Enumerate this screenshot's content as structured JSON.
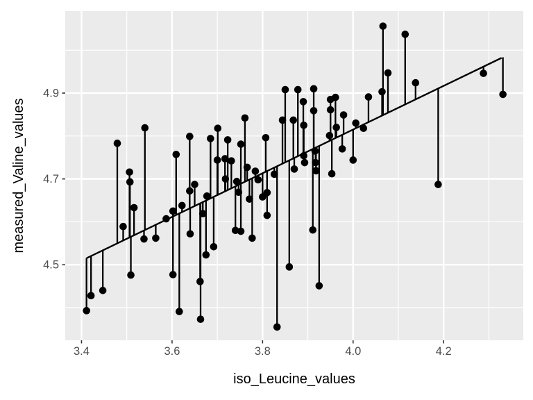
{
  "chart_data": {
    "type": "scatter",
    "title": "",
    "xlabel": "iso_Leucine_values",
    "ylabel": "measured_Valine_values",
    "xlim": [
      3.364,
      4.376
    ],
    "ylim": [
      4.324,
      5.091
    ],
    "x_major_ticks": [
      3.4,
      3.6,
      3.8,
      4.0,
      4.2
    ],
    "x_minor_ticks": [
      3.5,
      3.7,
      3.9,
      4.1,
      4.3
    ],
    "y_major_ticks": [
      4.5,
      4.7,
      4.9
    ],
    "y_minor_ticks": [
      4.4,
      4.6,
      4.8,
      5.0
    ],
    "x_tick_labels": [
      "3.4",
      "3.6",
      "3.8",
      "4.0",
      "4.2"
    ],
    "y_tick_labels": [
      "4.5",
      "4.7",
      "4.9"
    ],
    "grid": "major+minor",
    "legend": "none",
    "regression_line": {
      "slope": 0.509,
      "intercept": 2.779,
      "x_start": 3.411,
      "x_end": 4.328
    },
    "residual_segments": true,
    "points": [
      [
        3.411,
        4.393
      ],
      [
        3.421,
        4.428
      ],
      [
        3.447,
        4.44
      ],
      [
        3.479,
        4.783
      ],
      [
        3.492,
        4.589
      ],
      [
        3.506,
        4.716
      ],
      [
        3.507,
        4.693
      ],
      [
        3.509,
        4.476
      ],
      [
        3.516,
        4.633
      ],
      [
        3.54,
        4.819
      ],
      [
        3.538,
        4.56
      ],
      [
        3.564,
        4.562
      ],
      [
        3.587,
        4.607
      ],
      [
        3.602,
        4.625
      ],
      [
        3.602,
        4.477
      ],
      [
        3.609,
        4.757
      ],
      [
        3.616,
        4.391
      ],
      [
        3.622,
        4.638
      ],
      [
        3.639,
        4.799
      ],
      [
        3.639,
        4.672
      ],
      [
        3.64,
        4.572
      ],
      [
        3.65,
        4.687
      ],
      [
        3.662,
        4.461
      ],
      [
        3.663,
        4.373
      ],
      [
        3.668,
        4.619
      ],
      [
        3.685,
        4.794
      ],
      [
        3.677,
        4.66
      ],
      [
        3.675,
        4.523
      ],
      [
        3.692,
        4.542
      ],
      [
        3.701,
        4.818
      ],
      [
        3.7,
        4.744
      ],
      [
        3.723,
        4.791
      ],
      [
        3.717,
        4.747
      ],
      [
        3.718,
        4.7
      ],
      [
        3.731,
        4.742
      ],
      [
        3.743,
        4.694
      ],
      [
        3.74,
        4.58
      ],
      [
        3.752,
        4.781
      ],
      [
        3.747,
        4.669
      ],
      [
        3.752,
        4.578
      ],
      [
        3.761,
        4.842
      ],
      [
        3.766,
        4.727
      ],
      [
        3.771,
        4.653
      ],
      [
        3.784,
        4.718
      ],
      [
        3.777,
        4.562
      ],
      [
        3.79,
        4.698
      ],
      [
        3.8,
        4.658
      ],
      [
        3.807,
        4.796
      ],
      [
        3.81,
        4.668
      ],
      [
        3.81,
        4.615
      ],
      [
        3.826,
        4.711
      ],
      [
        3.832,
        4.355
      ],
      [
        3.844,
        4.837
      ],
      [
        3.85,
        4.908
      ],
      [
        3.859,
        4.495
      ],
      [
        3.868,
        4.837
      ],
      [
        3.87,
        4.723
      ],
      [
        3.878,
        4.908
      ],
      [
        3.89,
        4.88
      ],
      [
        3.891,
        4.825
      ],
      [
        3.891,
        4.754
      ],
      [
        3.893,
        4.738
      ],
      [
        3.913,
        4.91
      ],
      [
        3.913,
        4.859
      ],
      [
        3.911,
        4.581
      ],
      [
        3.916,
        4.765
      ],
      [
        3.917,
        4.738
      ],
      [
        3.918,
        4.719
      ],
      [
        3.925,
        4.451
      ],
      [
        3.95,
        4.885
      ],
      [
        3.95,
        4.861
      ],
      [
        3.948,
        4.801
      ],
      [
        3.953,
        4.712
      ],
      [
        3.961,
        4.89
      ],
      [
        3.963,
        4.82
      ],
      [
        3.979,
        4.849
      ],
      [
        3.976,
        4.77
      ],
      [
        4.0,
        4.744
      ],
      [
        4.006,
        4.83
      ],
      [
        4.023,
        4.818
      ],
      [
        4.034,
        4.891
      ],
      [
        4.064,
        4.903
      ],
      [
        4.066,
        5.056
      ],
      [
        4.077,
        4.947
      ],
      [
        4.115,
        5.037
      ],
      [
        4.138,
        4.924
      ],
      [
        4.188,
        4.687
      ],
      [
        4.288,
        4.946
      ],
      [
        4.331,
        4.897
      ]
    ]
  },
  "theme": {
    "background": "#FFFFFF",
    "panel_bg": "#EBEBEB",
    "grid_color": "#FFFFFF",
    "point_color": "#000000",
    "segment_color": "#000000",
    "line_color": "#000000",
    "axis_text_color": "#4D4D4D",
    "axis_title_color": "#000000",
    "tick_mark_color": "#333333"
  }
}
